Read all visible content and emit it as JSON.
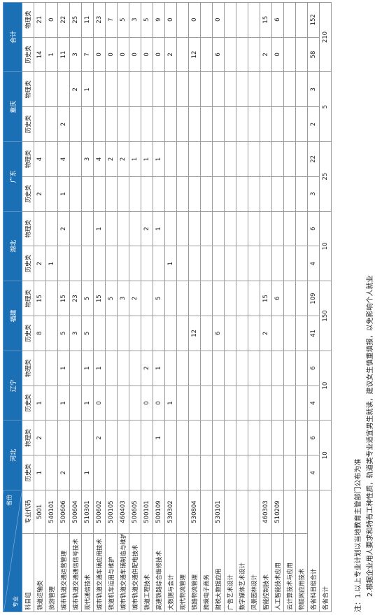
{
  "header": {
    "corner_top": "省份",
    "corner_bottom": "专业",
    "provinces": [
      "河北",
      "辽宁",
      "福建",
      "湖北",
      "广东",
      "重庆",
      "合计"
    ]
  },
  "table": {
    "columns": [
      "科目组",
      "专业代码",
      "历史类",
      "物理类",
      "历史类",
      "物理类",
      "历史类",
      "物理类",
      "历史类",
      "物理类",
      "历史类",
      "物理类",
      "历史类",
      "物理类",
      "历史类",
      "物理类"
    ],
    "rows": [
      [
        "铁道运输类",
        "5001",
        1,
        2,
        1,
        null,
        8,
        15,
        2,
        null,
        2,
        4,
        null,
        null,
        14,
        21
      ],
      [
        "旅游管理",
        "540101",
        null,
        null,
        null,
        null,
        null,
        null,
        1,
        null,
        null,
        null,
        null,
        null,
        1,
        0
      ],
      [
        "城市轨道交通运营管理",
        "500606",
        2,
        null,
        1,
        1,
        5,
        15,
        null,
        2,
        1,
        4,
        2,
        null,
        11,
        22
      ],
      [
        "城市轨道交通通信信号技术",
        "500604",
        null,
        null,
        null,
        null,
        3,
        23,
        null,
        null,
        null,
        null,
        null,
        2,
        3,
        25
      ],
      [
        "现代通信技术",
        "510301",
        1,
        null,
        1,
        1,
        5,
        5,
        null,
        null,
        null,
        3,
        null,
        1,
        7,
        11
      ],
      [
        "城市轨道交通车辆应用技术",
        "500602",
        null,
        2,
        0,
        1,
        null,
        15,
        null,
        1,
        null,
        4,
        null,
        null,
        0,
        23
      ],
      [
        "铁道机车运用与维护",
        "500105",
        null,
        null,
        null,
        null,
        null,
        5,
        null,
        null,
        null,
        2,
        null,
        null,
        0,
        7
      ],
      [
        "城市轨道交通车辆制造与维护",
        "460403",
        null,
        null,
        null,
        null,
        null,
        3,
        null,
        null,
        null,
        2,
        null,
        null,
        0,
        5
      ],
      [
        "城市轨道交通供配电技术",
        "500605",
        null,
        null,
        null,
        null,
        null,
        2,
        null,
        null,
        null,
        1,
        null,
        null,
        0,
        3
      ],
      [
        "铁道工程技术",
        "500101",
        null,
        null,
        0,
        2,
        null,
        null,
        null,
        2,
        null,
        1,
        null,
        null,
        0,
        5
      ],
      [
        "高速铁路综合维修技术",
        "500109",
        null,
        1,
        0,
        1,
        null,
        5,
        null,
        1,
        null,
        1,
        null,
        null,
        0,
        9
      ],
      [
        "大数据与会计",
        "530302",
        null,
        null,
        1,
        null,
        null,
        null,
        1,
        null,
        null,
        null,
        null,
        null,
        2,
        0
      ],
      [
        "现代物流管理",
        null,
        null,
        null,
        null,
        null,
        null,
        null,
        null,
        null,
        null,
        null,
        null,
        null,
        null,
        null
      ],
      [
        "铁路物流管理",
        "530804",
        null,
        null,
        null,
        null,
        12,
        null,
        null,
        null,
        null,
        null,
        null,
        null,
        12,
        0
      ],
      [
        "跨境电子商务",
        null,
        null,
        null,
        null,
        null,
        null,
        null,
        null,
        null,
        null,
        null,
        null,
        null,
        null,
        null
      ],
      [
        "财税大数据应用",
        "530101",
        null,
        null,
        null,
        null,
        6,
        null,
        null,
        null,
        null,
        null,
        null,
        null,
        6,
        0
      ],
      [
        "广告艺术设计",
        null,
        null,
        null,
        null,
        null,
        null,
        null,
        null,
        null,
        null,
        null,
        null,
        null,
        null,
        null
      ],
      [
        "数字媒体艺术设计",
        null,
        null,
        null,
        null,
        null,
        null,
        null,
        null,
        null,
        null,
        null,
        null,
        null,
        null,
        null
      ],
      [
        "风景园林设计",
        null,
        null,
        null,
        null,
        null,
        null,
        null,
        null,
        null,
        null,
        null,
        null,
        null,
        null,
        null
      ],
      [
        "智能控制技术",
        "460303",
        null,
        null,
        null,
        null,
        2,
        15,
        null,
        null,
        null,
        null,
        null,
        null,
        2,
        15
      ],
      [
        "人工智能技术应用",
        "510209",
        null,
        null,
        null,
        null,
        null,
        6,
        null,
        null,
        null,
        null,
        null,
        null,
        0,
        6
      ],
      [
        "云计算技术与应用",
        null,
        null,
        null,
        null,
        null,
        null,
        null,
        null,
        null,
        null,
        null,
        null,
        null,
        null,
        null
      ],
      [
        "物联网应用技术",
        null,
        null,
        null,
        null,
        null,
        null,
        null,
        null,
        null,
        null,
        null,
        null,
        null,
        null,
        null
      ]
    ],
    "subject_total": {
      "label": "各省科目组合计",
      "values": [
        4,
        6,
        4,
        6,
        41,
        109,
        4,
        6,
        3,
        22,
        2,
        3,
        58,
        152
      ]
    },
    "province_total": {
      "label": "各省合计",
      "values": [
        10,
        10,
        150,
        10,
        25,
        5,
        210
      ]
    }
  },
  "notes": [
    "注：1.以上专业计划以当地教育主管部门公布为准",
    "2.根据企业用人要求和特有工种性质，轨道类专业适宜男生就读，建议女生慎重填报，以免影响个人就业"
  ]
}
